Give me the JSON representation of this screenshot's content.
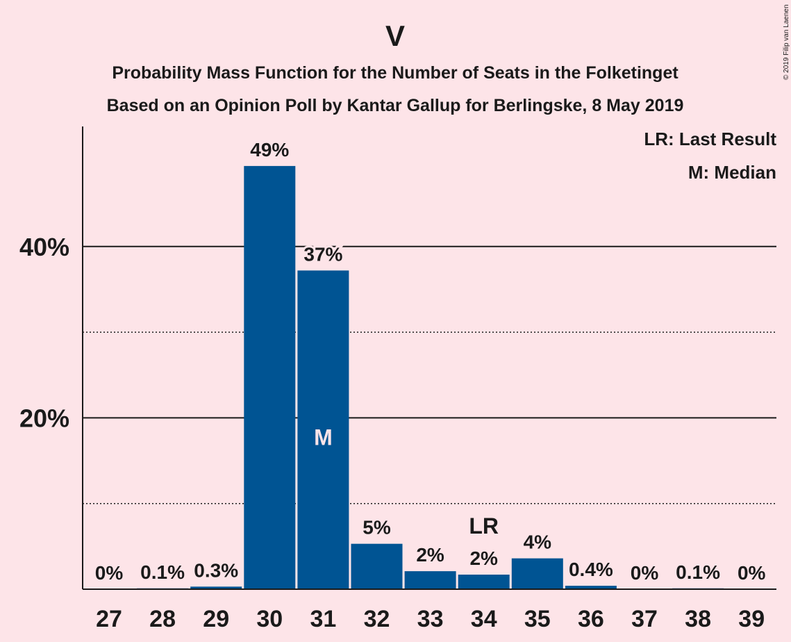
{
  "chart_data": {
    "type": "bar",
    "title": "V",
    "subtitle_1": "Probability Mass Function for the Number of Seats in the Folketinget",
    "subtitle_2": "Based on an Opinion Poll by Kantar Gallup for Berlingske, 8 May 2019",
    "copyright": "© 2019 Filip van Laenen",
    "legend": [
      "LR: Last Result",
      "M: Median"
    ],
    "legend_position": "top-right",
    "categories": [
      "27",
      "28",
      "29",
      "30",
      "31",
      "32",
      "33",
      "34",
      "35",
      "36",
      "37",
      "38",
      "39"
    ],
    "values": [
      0,
      0.1,
      0.3,
      49.4,
      37.2,
      5.3,
      2.1,
      1.7,
      3.6,
      0.4,
      0,
      0.1,
      0
    ],
    "data_labels": [
      "0%",
      "0.1%",
      "0.3%",
      "49%",
      "37%",
      "5%",
      "2%",
      "2%",
      "4%",
      "0.4%",
      "0%",
      "0.1%",
      "0%"
    ],
    "y_ticks": [
      20,
      40
    ],
    "y_tick_labels": [
      "20%",
      "40%"
    ],
    "minor_gridlines": [
      10,
      30
    ],
    "ylim": [
      0,
      50
    ],
    "median_category": "31",
    "median_marker": "M",
    "last_result_category": "34",
    "last_result_marker": "LR",
    "colors": {
      "background": "#fde4e8",
      "bar": "#005493",
      "text": "#1a1a1a",
      "median_text": "#fde4e8"
    }
  }
}
